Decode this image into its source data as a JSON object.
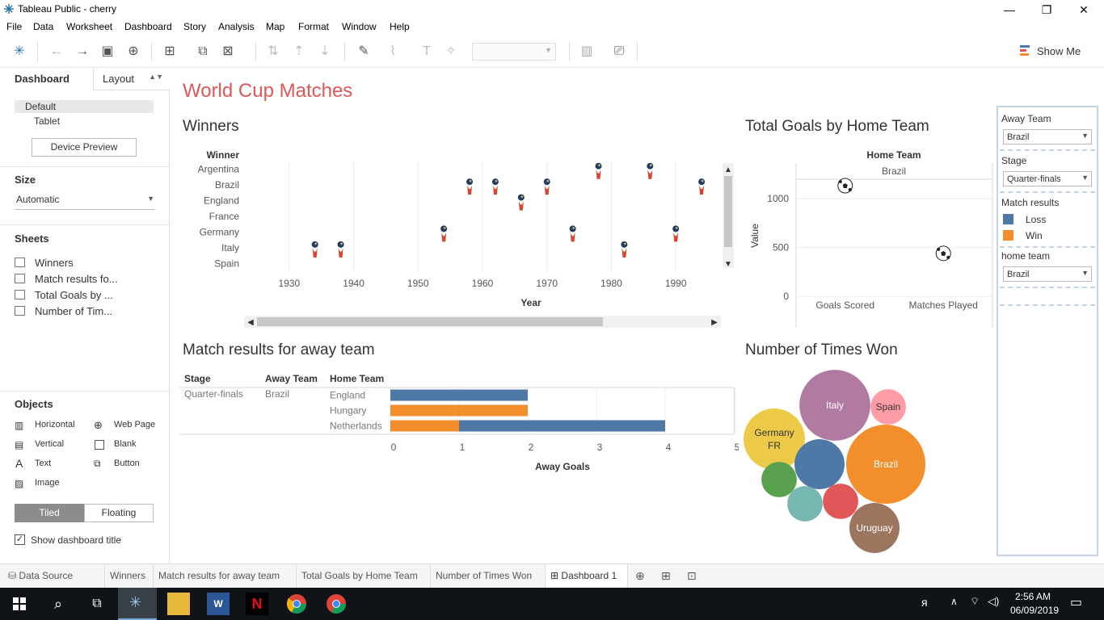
{
  "window": {
    "title": "Tableau Public - cherry",
    "minimize": "—",
    "maximize": "❐",
    "close": "✕"
  },
  "menu": [
    "File",
    "Data",
    "Worksheet",
    "Dashboard",
    "Story",
    "Analysis",
    "Map",
    "Format",
    "Window",
    "Help"
  ],
  "toolbar": {
    "show_me": "Show Me"
  },
  "left_panel": {
    "tab_dashboard": "Dashboard",
    "tab_layout": "Layout",
    "devices": [
      "Default",
      "Tablet"
    ],
    "device_preview": "Device Preview",
    "size_heading": "Size",
    "size_value": "Automatic",
    "sheets_heading": "Sheets",
    "sheets": [
      "Winners",
      "Match results fo...",
      "Total Goals by ...",
      "Number of Tim..."
    ],
    "objects_heading": "Objects",
    "objects": [
      "Horizontal",
      "Web Page",
      "Vertical",
      "Blank",
      "Text",
      "Button",
      "Image"
    ],
    "tiled": "Tiled",
    "floating": "Floating",
    "show_title": "Show dashboard title"
  },
  "dashboard": {
    "title": "World Cup Matches"
  },
  "chart_data": [
    {
      "type": "scatter",
      "title": "Winners",
      "row_header": "Winner",
      "xlabel": "Year",
      "categories": [
        "Argentina",
        "Brazil",
        "England",
        "France",
        "Germany",
        "Italy",
        "Spain"
      ],
      "x_ticks": [
        "1930",
        "1940",
        "1950",
        "1960",
        "1970",
        "1980",
        "1990"
      ],
      "xlim": [
        1923,
        1997
      ],
      "points": [
        {
          "x": 1934,
          "y": "Italy"
        },
        {
          "x": 1938,
          "y": "Italy"
        },
        {
          "x": 1954,
          "y": "Germany"
        },
        {
          "x": 1958,
          "y": "Brazil"
        },
        {
          "x": 1962,
          "y": "Brazil"
        },
        {
          "x": 1966,
          "y": "England"
        },
        {
          "x": 1970,
          "y": "Brazil"
        },
        {
          "x": 1974,
          "y": "Germany"
        },
        {
          "x": 1978,
          "y": "Argentina"
        },
        {
          "x": 1982,
          "y": "Italy"
        },
        {
          "x": 1986,
          "y": "Argentina"
        },
        {
          "x": 1990,
          "y": "Germany"
        },
        {
          "x": 1994,
          "y": "Brazil"
        }
      ]
    },
    {
      "type": "scatter",
      "title": "Total Goals by Home Team",
      "column_header": "Home Team",
      "column_value": "Brazil",
      "ylabel": "Value",
      "categories": [
        "Goals Scored",
        "Matches Played"
      ],
      "y_ticks": [
        "0",
        "500",
        "1000"
      ],
      "ylim": [
        0,
        1200
      ],
      "values": [
        1290,
        440
      ]
    },
    {
      "type": "bar",
      "title": "Match results for away team",
      "headers": [
        "Stage",
        "Away Team",
        "Home Team"
      ],
      "stage": "Quarter-finals",
      "away_team": "Brazil",
      "xlabel": "Away Goals",
      "x_ticks": [
        "0",
        "1",
        "2",
        "3",
        "4",
        "5"
      ],
      "xlim": [
        0,
        5
      ],
      "rows": [
        {
          "home": "England",
          "segments": [
            {
              "result": "Loss",
              "start": 0,
              "end": 2
            }
          ]
        },
        {
          "home": "Hungary",
          "segments": [
            {
              "result": "Win",
              "start": 0,
              "end": 2
            }
          ]
        },
        {
          "home": "Netherlands",
          "segments": [
            {
              "result": "Win",
              "start": 0,
              "end": 1
            },
            {
              "result": "Loss",
              "start": 1,
              "end": 4
            }
          ]
        }
      ]
    },
    {
      "type": "bubble",
      "title": "Number of Times Won",
      "bubbles": [
        {
          "label": "Italy",
          "color": "#b07aa1",
          "size": 4
        },
        {
          "label": "Spain",
          "color": "#ff9da7",
          "size": 1
        },
        {
          "label": "Germany FR",
          "color": "#edc948",
          "size": 3
        },
        {
          "label": "Brazil",
          "color": "#f28e2b",
          "size": 5
        },
        {
          "label": "",
          "color": "#4e79a7",
          "size": 2
        },
        {
          "label": "",
          "color": "#59a14f",
          "size": 1
        },
        {
          "label": "",
          "color": "#76b7b2",
          "size": 1
        },
        {
          "label": "",
          "color": "#e15759",
          "size": 1
        },
        {
          "label": "Uruguay",
          "color": "#9c755f",
          "size": 2
        }
      ]
    }
  ],
  "filters": {
    "away_team_title": "Away Team",
    "away_team_value": "Brazil",
    "stage_title": "Stage",
    "stage_value": "Quarter-finals",
    "legend_title": "Match results",
    "legend": [
      {
        "label": "Loss",
        "color": "#4e79a7"
      },
      {
        "label": "Win",
        "color": "#f28e2b"
      }
    ],
    "home_team_title": "home team",
    "home_team_value": "Brazil"
  },
  "tabs": {
    "data_source": "Data Source",
    "sheets": [
      "Winners",
      "Match results for away team",
      "Total Goals by Home Team",
      "Number of Times Won"
    ],
    "active": "Dashboard 1"
  },
  "taskbar": {
    "time": "2:56 AM",
    "date": "06/09/2019"
  }
}
